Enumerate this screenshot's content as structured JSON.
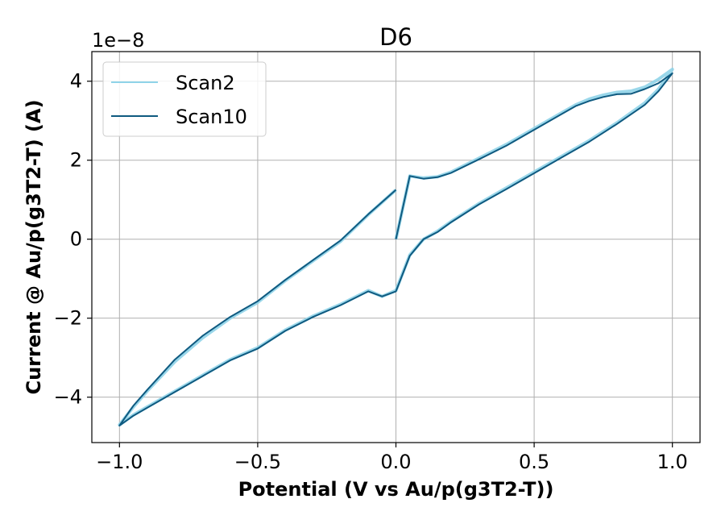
{
  "chart_data": {
    "type": "line",
    "title": "D6",
    "xlabel": "Potential (V vs Au/p(g3T2-T))",
    "ylabel": "Current @ Au/p(g3T2-T) (A)",
    "y_offset_label": "1e−8",
    "xlim": [
      -1.1,
      1.1
    ],
    "ylim": [
      -5.15,
      4.75
    ],
    "x_ticks": [
      -1.0,
      -0.5,
      0.0,
      0.5,
      1.0
    ],
    "x_tick_labels": [
      "−1.0",
      "−0.5",
      "0.0",
      "0.5",
      "1.0"
    ],
    "y_ticks": [
      -4,
      -2,
      0,
      2,
      4
    ],
    "y_tick_labels": [
      "−4",
      "−2",
      "0",
      "2",
      "4"
    ],
    "grid": true,
    "legend_position": "top-left",
    "series": [
      {
        "name": "Scan2",
        "color": "#8fd3e8",
        "x": [
          0.0,
          0.05,
          0.1,
          0.15,
          0.2,
          0.3,
          0.4,
          0.5,
          0.6,
          0.65,
          0.7,
          0.75,
          0.8,
          0.85,
          0.9,
          0.95,
          1.0,
          0.95,
          0.9,
          0.8,
          0.7,
          0.6,
          0.5,
          0.4,
          0.3,
          0.2,
          0.15,
          0.1,
          0.05,
          0.0,
          -0.05,
          -0.1,
          -0.2,
          -0.3,
          -0.4,
          -0.5,
          -0.6,
          -0.7,
          -0.8,
          -0.9,
          -0.95,
          -1.0,
          -0.95,
          -0.9,
          -0.8,
          -0.7,
          -0.6,
          -0.5,
          -0.4,
          -0.3,
          -0.2,
          -0.1,
          0.0
        ],
        "y": [
          0.0,
          1.6,
          1.55,
          1.58,
          1.7,
          2.05,
          2.4,
          2.8,
          3.2,
          3.4,
          3.55,
          3.65,
          3.72,
          3.75,
          3.85,
          4.05,
          4.3,
          3.8,
          3.45,
          2.95,
          2.5,
          2.1,
          1.7,
          1.3,
          0.9,
          0.45,
          0.2,
          0.0,
          -0.4,
          -1.3,
          -1.45,
          -1.3,
          -1.65,
          -1.95,
          -2.3,
          -2.75,
          -3.05,
          -3.45,
          -3.85,
          -4.25,
          -4.45,
          -4.7,
          -4.25,
          -3.85,
          -3.1,
          -2.5,
          -2.0,
          -1.6,
          -1.05,
          -0.55,
          -0.05,
          0.62,
          1.25
        ]
      },
      {
        "name": "Scan10",
        "color": "#0f5a80",
        "x": [
          0.0,
          0.05,
          0.1,
          0.15,
          0.2,
          0.3,
          0.4,
          0.5,
          0.6,
          0.65,
          0.7,
          0.75,
          0.8,
          0.85,
          0.9,
          0.95,
          1.0,
          0.95,
          0.9,
          0.8,
          0.7,
          0.6,
          0.5,
          0.4,
          0.3,
          0.2,
          0.15,
          0.1,
          0.05,
          0.0,
          -0.05,
          -0.1,
          -0.2,
          -0.3,
          -0.4,
          -0.5,
          -0.6,
          -0.7,
          -0.8,
          -0.9,
          -0.95,
          -1.0,
          -0.95,
          -0.9,
          -0.8,
          -0.7,
          -0.6,
          -0.5,
          -0.4,
          -0.3,
          -0.2,
          -0.1,
          0.0
        ],
        "y": [
          0.0,
          1.6,
          1.53,
          1.57,
          1.68,
          2.02,
          2.37,
          2.77,
          3.17,
          3.37,
          3.5,
          3.6,
          3.67,
          3.68,
          3.8,
          3.95,
          4.2,
          3.75,
          3.4,
          2.92,
          2.47,
          2.07,
          1.67,
          1.27,
          0.88,
          0.43,
          0.18,
          0.0,
          -0.42,
          -1.32,
          -1.45,
          -1.32,
          -1.67,
          -1.97,
          -2.32,
          -2.77,
          -3.07,
          -3.47,
          -3.87,
          -4.27,
          -4.47,
          -4.72,
          -4.22,
          -3.82,
          -3.05,
          -2.45,
          -1.97,
          -1.57,
          -1.03,
          -0.53,
          -0.03,
          0.63,
          1.25
        ]
      }
    ]
  }
}
